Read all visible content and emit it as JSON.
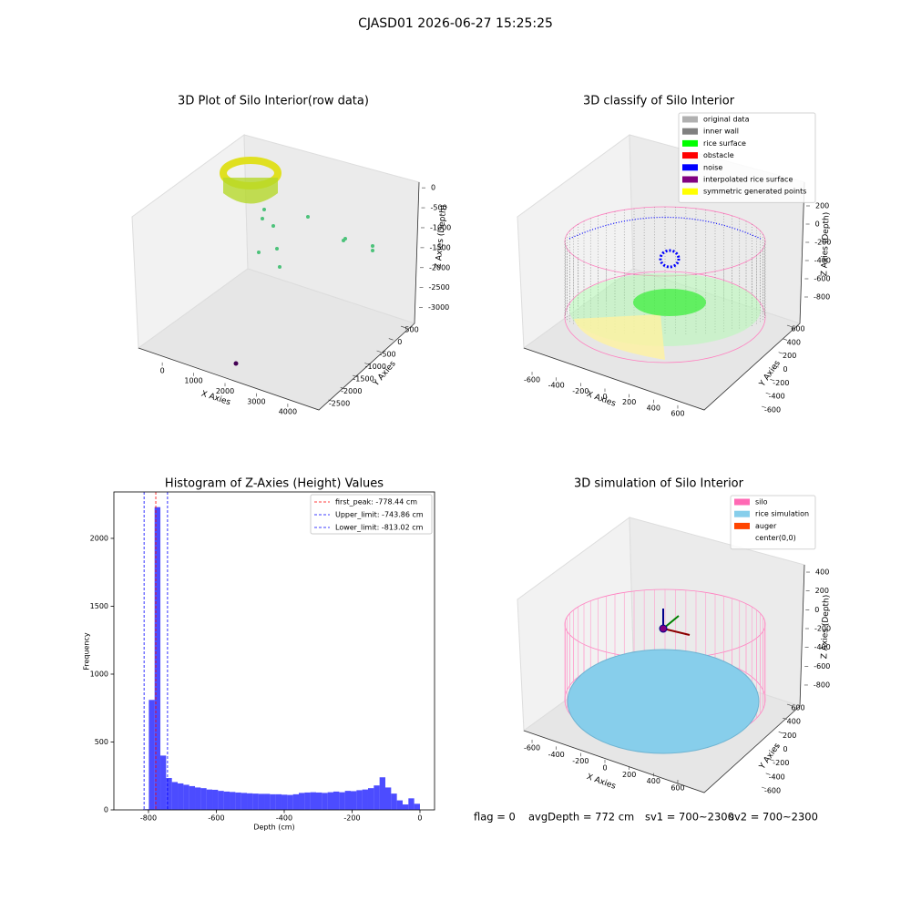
{
  "title": "CJASD01 2026-06-27 15:25:25",
  "status": [
    "flag = 0",
    "avgDepth = 772 cm",
    "sv1 = 700~2300",
    "sv2 = 700~2300"
  ],
  "chart_data": [
    {
      "type": "scatter3d",
      "title": "3D Plot of Silo Interior(row data)",
      "xlabel": "X Axies",
      "ylabel": "Y Axies",
      "zlabel": "Z Axies (Depth)",
      "xlim": [
        -700,
        4700
      ],
      "xticks": [
        0,
        1000,
        2000,
        3000,
        4000
      ],
      "ylim": [
        800,
        -2800
      ],
      "yticks": [
        500,
        0,
        -500,
        -1000,
        -1500,
        -2000,
        -2500
      ],
      "zlim": [
        300,
        -3100
      ],
      "zticks": [
        0,
        -500,
        -1000,
        -1500,
        -2000,
        -2500,
        -3000
      ]
    },
    {
      "type": "scatter3d",
      "title": "3D classify of Silo Interior",
      "xlabel": "X Axies",
      "ylabel": "Y Axies",
      "zlabel": "Z Axies (Depth)",
      "series": [
        {
          "name": "original data",
          "color": "#b0b0b0"
        },
        {
          "name": "inner wall",
          "color": "#808080"
        },
        {
          "name": "rice surface",
          "color": "#00ff00"
        },
        {
          "name": "obstacle",
          "color": "#ff0000"
        },
        {
          "name": "noise",
          "color": "#0000ff"
        },
        {
          "name": "interpolated rice surface",
          "color": "#800080"
        },
        {
          "name": "symmetric generated points",
          "color": "#ffff00"
        }
      ],
      "xlim": [
        -700,
        700
      ],
      "xticks": [
        -600,
        -400,
        -200,
        0,
        200,
        400,
        600
      ],
      "ylim": [
        700,
        -700
      ],
      "yticks": [
        600,
        400,
        200,
        0,
        -200,
        -400,
        -600
      ],
      "zlim": [
        300,
        -900
      ],
      "zticks": [
        200,
        0,
        -200,
        -400,
        -600,
        -800
      ]
    },
    {
      "type": "histogram",
      "title": "Histogram of Z-Axies (Height) Values",
      "xlabel": "Depth (cm)",
      "ylabel": "Frequency",
      "color": "#0000ff",
      "bins": [
        -816,
        -799,
        -782,
        -765,
        -748,
        -731,
        -714,
        -697,
        -680,
        -663,
        -646,
        -629,
        -612,
        -595,
        -578,
        -561,
        -544,
        -527,
        -510,
        -493,
        -476,
        -459,
        -442,
        -425,
        -408,
        -391,
        -374,
        -357,
        -340,
        -323,
        -306,
        -289,
        -272,
        -255,
        -238,
        -221,
        -204,
        -187,
        -170,
        -153,
        -136,
        -119,
        -102,
        -85,
        -68,
        -51,
        -34,
        -17,
        0
      ],
      "values": [
        5,
        810,
        2230,
        400,
        235,
        205,
        195,
        185,
        175,
        165,
        160,
        150,
        148,
        140,
        135,
        132,
        128,
        125,
        122,
        120,
        118,
        118,
        115,
        115,
        112,
        110,
        115,
        125,
        128,
        130,
        128,
        125,
        130,
        135,
        130,
        140,
        138,
        145,
        150,
        160,
        180,
        240,
        165,
        120,
        70,
        40,
        85,
        45
      ],
      "lines": [
        {
          "name": "first_peak: -778.44 cm",
          "value": -778.44,
          "color": "#ff0000"
        },
        {
          "name": "Upper_limit: -743.86 cm",
          "value": -743.86,
          "color": "#0000ff"
        },
        {
          "name": "Lower_limit: -813.02 cm",
          "value": -813.02,
          "color": "#0000ff"
        }
      ],
      "xlim": [
        -902,
        43
      ],
      "xticks": [
        -800,
        -600,
        -400,
        -200,
        0
      ],
      "ylim": [
        0,
        2342
      ],
      "yticks": [
        0,
        500,
        1000,
        1500,
        2000
      ]
    },
    {
      "type": "scatter3d",
      "title": "3D simulation of Silo Interior",
      "xlabel": "X Axies",
      "ylabel": "Y Axies",
      "zlabel": "Z Axies (Depth)",
      "series": [
        {
          "name": "silo",
          "color": "#ff69b4"
        },
        {
          "name": "rice simulation",
          "color": "#87ceeb"
        },
        {
          "name": "auger",
          "color": "#ff4500"
        },
        {
          "name": "center(0,0)"
        }
      ],
      "xlim": [
        -700,
        700
      ],
      "xticks": [
        -600,
        -400,
        -200,
        0,
        200,
        400,
        600
      ],
      "ylim": [
        700,
        -700
      ],
      "yticks": [
        600,
        400,
        200,
        0,
        -200,
        -400,
        -600
      ],
      "zlim": [
        500,
        -900
      ],
      "zticks": [
        400,
        200,
        0,
        -200,
        -400,
        -600,
        -800
      ]
    }
  ]
}
